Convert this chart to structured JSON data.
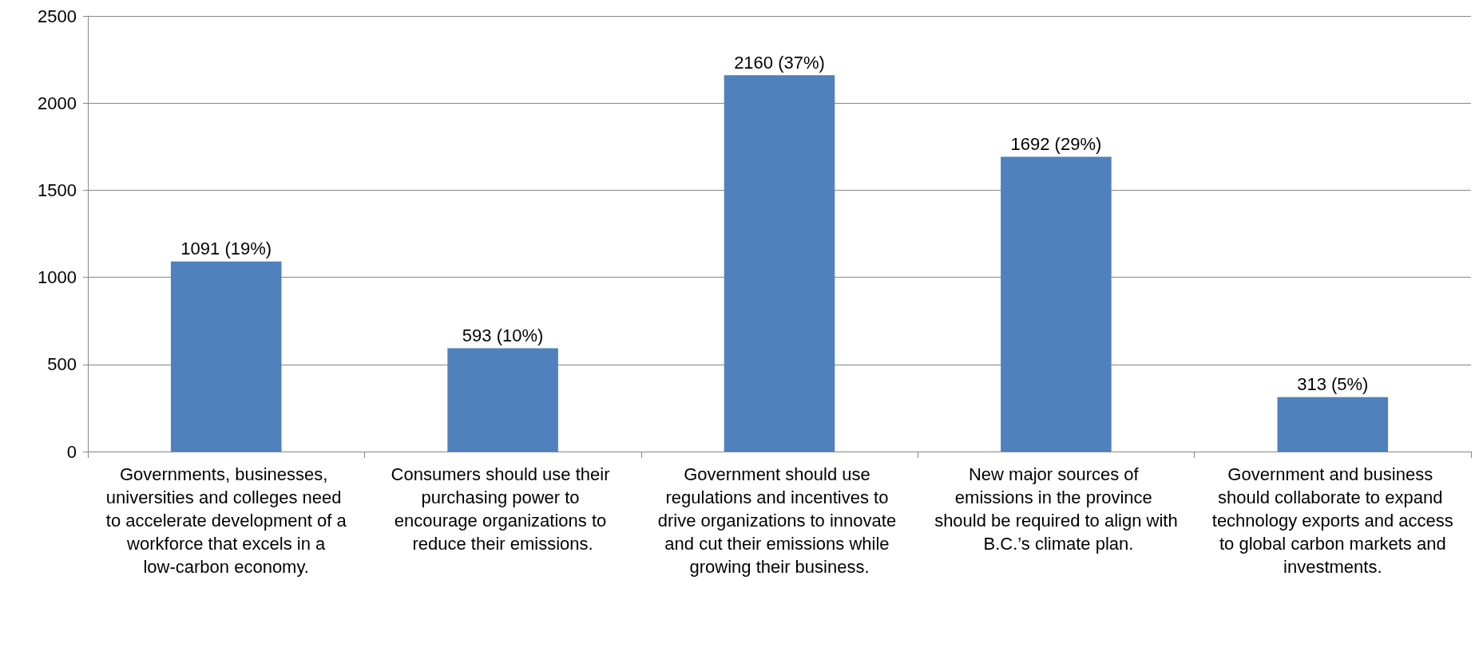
{
  "chart_data": {
    "type": "bar",
    "categories": [
      "Governments, businesses, universities and colleges need to accelerate development of a workforce that excels in a low-carbon economy.",
      "Consumers should use their purchasing power to encourage organizations to reduce their emissions.",
      "Government should use regulations and incentives to drive organizations to innovate and cut their emissions while growing their business.",
      "New major sources of emissions in the province should be required to align with B.C.’s climate plan.",
      "Government and business should collaborate to expand technology exports and access to global carbon markets and investments."
    ],
    "values": [
      1091,
      593,
      2160,
      1692,
      313
    ],
    "value_labels": [
      "1091 (19%)",
      "593 (10%)",
      "2160 (37%)",
      "1692 (29%)",
      "313 (5%)"
    ],
    "color": "#4f81bd",
    "ylim": [
      0,
      2500
    ],
    "yticks": [
      0,
      500,
      1000,
      1500,
      2000,
      2500
    ],
    "grid": "y"
  }
}
